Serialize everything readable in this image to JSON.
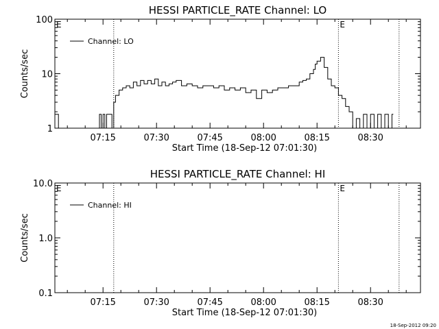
{
  "chart_data": [
    {
      "type": "line",
      "title": "HESSI PARTICLE_RATE Channel: LO",
      "xlabel": "Start Time (18-Sep-12 07:01:30)",
      "ylabel": "Counts/sec",
      "yscale": "log",
      "ylim": [
        1,
        100
      ],
      "xlim": [
        "07:01:30",
        "08:44:00"
      ],
      "x_ticks": [
        "07:15",
        "07:30",
        "07:45",
        "08:00",
        "08:15",
        "08:30"
      ],
      "y_ticks": [
        "1",
        "10",
        "100"
      ],
      "legend": {
        "position": "top-left",
        "entries": [
          "Channel: LO"
        ]
      },
      "annotations": [
        {
          "text": "E",
          "x": "07:01:30"
        },
        {
          "text": "E",
          "x": "08:21:00"
        }
      ],
      "vlines": [
        "07:18:00",
        "08:21:00",
        "08:38:00"
      ],
      "series": [
        {
          "name": "Channel: LO",
          "x": [
            "07:01:30",
            "07:02:30",
            "07:03:00",
            "07:08:00",
            "07:08:30",
            "07:10:00",
            "07:10:30",
            "07:13:30",
            "07:14:00",
            "07:14:30",
            "07:15:00",
            "07:15:30",
            "07:16:00",
            "07:17:00",
            "07:17:30",
            "07:18:00",
            "07:18:30",
            "07:19:30",
            "07:20:30",
            "07:21:30",
            "07:22:30",
            "07:23:30",
            "07:24:30",
            "07:25:30",
            "07:26:30",
            "07:27:30",
            "07:28:30",
            "07:29:30",
            "07:30:30",
            "07:31:30",
            "07:32:30",
            "07:33:30",
            "07:34:30",
            "07:35:30",
            "07:37:00",
            "07:38:30",
            "07:40:00",
            "07:41:30",
            "07:43:00",
            "07:44:30",
            "07:46:00",
            "07:47:30",
            "07:49:00",
            "07:50:30",
            "07:52:00",
            "07:53:30",
            "07:55:00",
            "07:56:30",
            "07:58:00",
            "07:59:30",
            "08:01:00",
            "08:02:30",
            "08:04:00",
            "08:05:30",
            "08:07:00",
            "08:08:30",
            "08:10:00",
            "08:11:00",
            "08:12:00",
            "08:13:00",
            "08:14:00",
            "08:14:30",
            "08:15:00",
            "08:16:00",
            "08:17:00",
            "08:18:00",
            "08:19:00",
            "08:20:00",
            "08:21:00",
            "08:22:00",
            "08:23:00",
            "08:24:00",
            "08:25:00",
            "08:26:00",
            "08:27:00",
            "08:28:00",
            "08:29:00",
            "08:30:00",
            "08:31:00",
            "08:32:00",
            "08:33:00",
            "08:34:00",
            "08:35:00",
            "08:36:00"
          ],
          "values": [
            1.8,
            1.0,
            1.0,
            1.0,
            1.0,
            1.0,
            1.0,
            1.0,
            1.8,
            1.0,
            1.8,
            1.0,
            1.8,
            1.8,
            1.0,
            3.0,
            4.0,
            5.0,
            5.5,
            6.0,
            5.5,
            7.0,
            6.0,
            7.5,
            6.5,
            7.5,
            6.5,
            8.0,
            6.0,
            7.0,
            6.0,
            6.5,
            7.0,
            7.5,
            6.0,
            6.5,
            6.0,
            5.5,
            6.0,
            6.0,
            5.5,
            6.0,
            5.0,
            5.5,
            5.0,
            5.5,
            4.5,
            5.0,
            3.5,
            5.0,
            4.5,
            5.0,
            5.5,
            5.5,
            6.0,
            6.0,
            7.0,
            7.5,
            8.0,
            10.0,
            12.0,
            15.0,
            17.0,
            20.0,
            13.0,
            8.0,
            6.0,
            5.5,
            4.0,
            3.5,
            2.5,
            2.0,
            1.0,
            1.5,
            1.0,
            1.8,
            1.0,
            1.8,
            1.0,
            1.8,
            1.0,
            1.8,
            1.0,
            1.8
          ]
        }
      ]
    },
    {
      "type": "line",
      "title": "HESSI PARTICLE_RATE Channel: HI",
      "xlabel": "Start Time (18-Sep-12 07:01:30)",
      "ylabel": "Counts/sec",
      "yscale": "log",
      "ylim": [
        0.1,
        10
      ],
      "xlim": [
        "07:01:30",
        "08:44:00"
      ],
      "x_ticks": [
        "07:15",
        "07:30",
        "07:45",
        "08:00",
        "08:15",
        "08:30"
      ],
      "y_ticks": [
        "0.1",
        "1.0",
        "10.0"
      ],
      "legend": {
        "position": "top-left",
        "entries": [
          "Channel: HI"
        ]
      },
      "annotations": [
        {
          "text": "E",
          "x": "07:01:30"
        },
        {
          "text": "E",
          "x": "08:21:00"
        }
      ],
      "vlines": [
        "07:18:00",
        "08:21:00",
        "08:38:00"
      ],
      "series": [
        {
          "name": "Channel: HI",
          "x": [],
          "values": []
        }
      ]
    }
  ],
  "footer": {
    "timestamp": "18-Sep-2012 09:20"
  }
}
